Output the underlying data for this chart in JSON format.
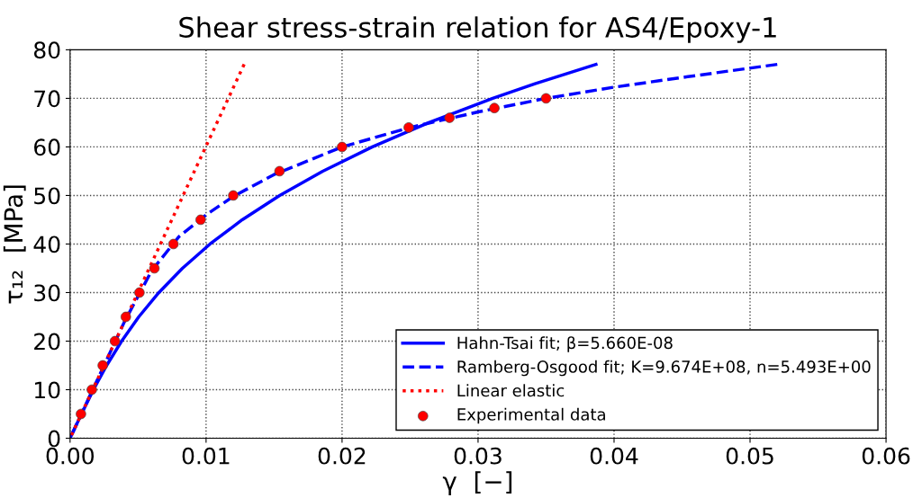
{
  "chart_data": {
    "type": "line",
    "title": "Shear stress-strain relation for AS4/Epoxy-1",
    "xlabel": "γ  [−]",
    "ylabel": "τ₁₂  [MPa]",
    "xlim": [
      0,
      0.06
    ],
    "ylim": [
      0,
      80
    ],
    "xticks": [
      {
        "value": 0,
        "label": "0.00"
      },
      0.01,
      0.02,
      0.03,
      0.04,
      0.05,
      0.06
    ],
    "yticks": [
      0,
      10,
      20,
      30,
      40,
      50,
      60,
      70,
      80
    ],
    "grid": true,
    "legend": "bottom right",
    "series": [
      {
        "name": "Hahn-Tsai fit; β=5.660E-08",
        "color": "#0000ff",
        "line_style": "solid",
        "x": [
          0,
          0.00084,
          0.00172,
          0.00269,
          0.00379,
          0.00505,
          0.00653,
          0.00826,
          0.01029,
          0.01266,
          0.01541,
          0.01858,
          0.02223,
          0.02638,
          0.03108,
          0.03419,
          0.03867
        ],
        "values": [
          0,
          5,
          10,
          15,
          20,
          25,
          30,
          35,
          40,
          45,
          50,
          55,
          60,
          65,
          70,
          73,
          77
        ]
      },
      {
        "name": "Ramberg-Osgood fit; K=9.674E+08, n=5.493E+00",
        "color": "#0000ff",
        "line_style": "dashed",
        "x": [
          0,
          0.002,
          0.004,
          0.006,
          0.008,
          0.01,
          0.012,
          0.015,
          0.02,
          0.025,
          0.03,
          0.035,
          0.04,
          0.045,
          0.052
        ],
        "values": [
          0,
          12,
          24,
          34.5,
          41.5,
          46,
          49.8,
          54.3,
          60,
          64,
          67.2,
          70,
          72.3,
          74.3,
          77
        ]
      },
      {
        "name": "Linear elastic",
        "color": "#ff0000",
        "line_style": "dotted",
        "x": [
          0,
          0.0128
        ],
        "values": [
          0,
          77
        ]
      },
      {
        "name": "Experimental data",
        "type": "scatter",
        "color": "#ff0000",
        "marker": "circle",
        "x": [
          0.0008,
          0.0016,
          0.0024,
          0.0033,
          0.0041,
          0.0051,
          0.0062,
          0.0076,
          0.0096,
          0.012,
          0.0154,
          0.02,
          0.0249,
          0.0279,
          0.0312,
          0.035
        ],
        "values": [
          5,
          10,
          15,
          20,
          25,
          30,
          35,
          40,
          45,
          50,
          55,
          60,
          64,
          66,
          68,
          70
        ]
      }
    ]
  }
}
